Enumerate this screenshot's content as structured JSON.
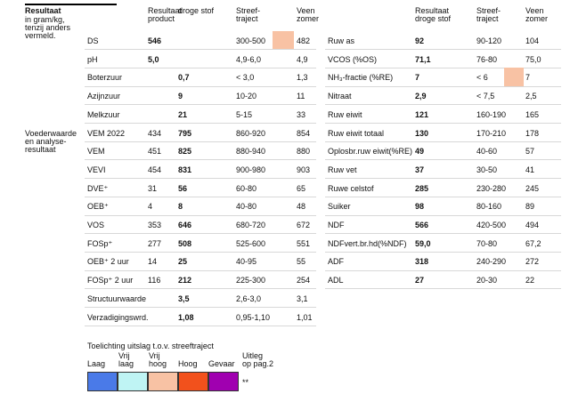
{
  "header": {
    "title": "Resultaat",
    "subtitle": [
      "in gram/kg,",
      "tenzij anders",
      "vermeld."
    ]
  },
  "section_label": [
    "Voederwaarde",
    "en analyse-",
    "resultaat"
  ],
  "left_table": {
    "columns": {
      "product": [
        "Resultaat",
        "product"
      ],
      "dry_matter": [
        "droge stof"
      ],
      "target": [
        "Streef-",
        "traject"
      ],
      "reference": [
        "Veen",
        "zomer"
      ]
    },
    "rows": [
      {
        "label": "DS",
        "product": "546",
        "target": "300-500",
        "reference": "482",
        "flag_color": "#f8c2a4"
      },
      {
        "label": "pH",
        "product": "5,0",
        "target": "4,9-6,0",
        "reference": "4,9"
      },
      {
        "label": "Boterzuur",
        "dry_matter": "0,7",
        "target": "< 3,0",
        "reference": "1,3"
      },
      {
        "label": "Azijnzuur",
        "dry_matter": "9",
        "target": "10-20",
        "reference": "11"
      },
      {
        "label": "Melkzuur",
        "dry_matter": "21",
        "target": "5-15",
        "reference": "33"
      },
      {
        "label": "VEM 2022",
        "product": "434",
        "dry_matter": "795",
        "target": "860-920",
        "reference": "854"
      },
      {
        "label": "VEM",
        "product": "451",
        "dry_matter": "825",
        "target": "880-940",
        "reference": "880"
      },
      {
        "label": "VEVI",
        "product": "454",
        "dry_matter": "831",
        "target": "900-980",
        "reference": "903"
      },
      {
        "label": "DVE⁺",
        "product": "31",
        "dry_matter": "56",
        "target": "60-80",
        "reference": "65"
      },
      {
        "label": "OEB⁺",
        "product": "4",
        "dry_matter": "8",
        "target": "40-80",
        "reference": "48"
      },
      {
        "label": "VOS",
        "product": "353",
        "dry_matter": "646",
        "target": "680-720",
        "reference": "672"
      },
      {
        "label": "FOSp⁺",
        "product": "277",
        "dry_matter": "508",
        "target": "525-600",
        "reference": "551"
      },
      {
        "label": "OEB⁺ 2 uur",
        "product": "14",
        "dry_matter": "25",
        "target": "40-95",
        "reference": "55"
      },
      {
        "label": "FOSp⁺ 2 uur",
        "product": "116",
        "dry_matter": "212",
        "target": "225-300",
        "reference": "254"
      },
      {
        "label": "Structuurwaarde",
        "dry_matter": "3,5",
        "target": "2,6-3,0",
        "reference": "3,1"
      },
      {
        "label": "Verzadigingswrd.",
        "dry_matter": "1,08",
        "target": "0,95-1,10",
        "reference": "1,01"
      }
    ]
  },
  "right_table": {
    "columns": {
      "dry_matter": [
        "Resultaat",
        "droge stof"
      ],
      "target": [
        "Streef-",
        "traject"
      ],
      "reference": [
        "Veen",
        "zomer"
      ]
    },
    "rows": [
      {
        "label": "Ruw as",
        "dry_matter": "92",
        "target": "90-120",
        "reference": "104"
      },
      {
        "label": "VCOS (%OS)",
        "dry_matter": "71,1",
        "target": "76-80",
        "reference": "75,0"
      },
      {
        "label": "NH₃-fractie (%RE)",
        "dry_matter": "7",
        "target": "< 6",
        "reference": "7",
        "flag_color": "#f8c2a4"
      },
      {
        "label": "Nitraat",
        "dry_matter": "2,9",
        "target": "< 7,5",
        "reference": "2,5"
      },
      {
        "label": "Ruw eiwit",
        "dry_matter": "121",
        "target": "160-190",
        "reference": "165"
      },
      {
        "label": "Ruw eiwit totaal",
        "dry_matter": "130",
        "target": "170-210",
        "reference": "178"
      },
      {
        "label": "Oplosbr.ruw eiwit(%RE)",
        "dry_matter": "49",
        "target": "40-60",
        "reference": "57"
      },
      {
        "label": "Ruw vet",
        "dry_matter": "37",
        "target": "30-50",
        "reference": "41"
      },
      {
        "label": "Ruwe celstof",
        "dry_matter": "285",
        "target": "230-280",
        "reference": "245"
      },
      {
        "label": "Suiker",
        "dry_matter": "98",
        "target": "80-160",
        "reference": "89"
      },
      {
        "label": "NDF",
        "dry_matter": "566",
        "target": "420-500",
        "reference": "494"
      },
      {
        "label": "NDFvert.br.hd(%NDF)",
        "dry_matter": "59,0",
        "target": "70-80",
        "reference": "67,2"
      },
      {
        "label": "ADF",
        "dry_matter": "318",
        "target": "240-290",
        "reference": "272"
      },
      {
        "label": "ADL",
        "dry_matter": "27",
        "target": "20-30",
        "reference": "22"
      }
    ]
  },
  "legend": {
    "title": "Toelichting uitslag t.o.v. streeftraject",
    "items": [
      {
        "label": [
          "Laag"
        ],
        "color": "#4a7ae8"
      },
      {
        "label": [
          "Vrij",
          "laag"
        ],
        "color": "#bff4f4"
      },
      {
        "label": [
          "Vrij",
          "hoog"
        ],
        "color": "#f8c2a4"
      },
      {
        "label": [
          "Hoog"
        ],
        "color": "#f2511c"
      },
      {
        "label": [
          "Gevaar"
        ],
        "color": "#a000b0"
      }
    ],
    "explanation": [
      "Uitleg",
      "op pag.2"
    ],
    "note": "**"
  }
}
